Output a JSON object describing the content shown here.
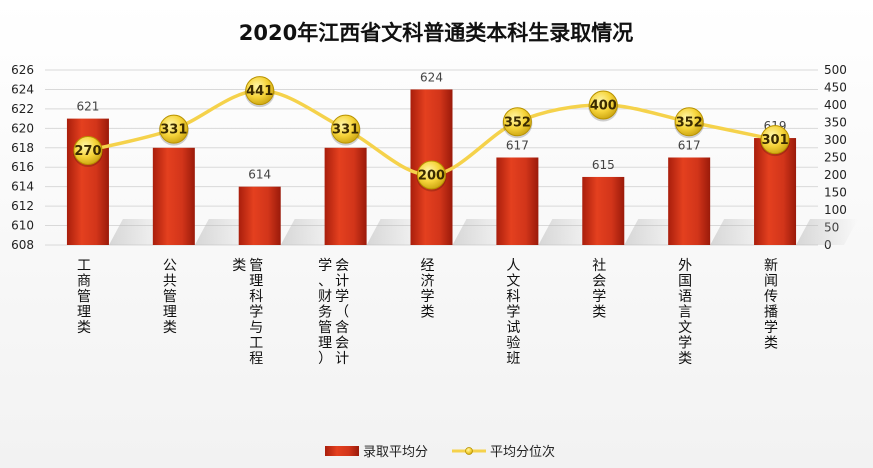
{
  "chart_data": {
    "type": "bar+line",
    "title": "2020年江西省文科普通类本科生录取情况",
    "categories": [
      "工商管理类",
      "公共管理类",
      "管理科学与工程类",
      "会计学（含会计学、财务管理）",
      "经济学类",
      "人文科学试验班",
      "社会学类",
      "外国语言文学类",
      "新闻传播学类"
    ],
    "series": [
      {
        "name": "录取平均分",
        "type": "bar",
        "axis": "left",
        "values": [
          621,
          618,
          614,
          618,
          624,
          617,
          615,
          617,
          619
        ],
        "color": "#d9341a"
      },
      {
        "name": "平均分位次",
        "type": "line",
        "axis": "right",
        "values": [
          270,
          331,
          441,
          331,
          200,
          352,
          400,
          352,
          301
        ],
        "color": "#f5d24b"
      }
    ],
    "y_left": {
      "min": 608,
      "max": 626,
      "step": 2
    },
    "y_right": {
      "min": 0,
      "max": 500,
      "step": 50
    },
    "legend_position": "bottom",
    "grid": true
  }
}
